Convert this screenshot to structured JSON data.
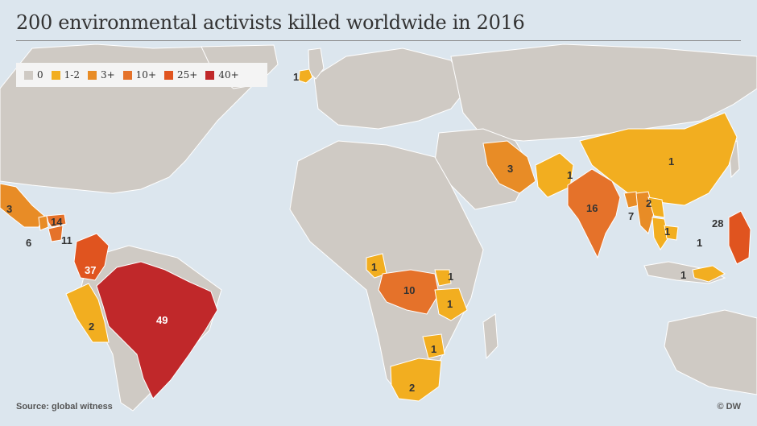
{
  "title": "200 environmental activists killed worldwide in 2016",
  "legend": [
    {
      "label": "0",
      "color": "#cfcac4"
    },
    {
      "label": "1-2",
      "color": "#f2ae20"
    },
    {
      "label": "3+",
      "color": "#e88c26"
    },
    {
      "label": "10+",
      "color": "#e5722a"
    },
    {
      "label": "25+",
      "color": "#e0541f"
    },
    {
      "label": "40+",
      "color": "#c0282a"
    }
  ],
  "countries": [
    {
      "name": "Ireland",
      "label": "1",
      "color": "#f2ae20"
    },
    {
      "name": "Mexico",
      "label": "3",
      "color": "#e88c26"
    },
    {
      "name": "Honduras",
      "label": "14",
      "color": "#e5722a"
    },
    {
      "name": "Nicaragua",
      "label": "11",
      "color": "#e5722a"
    },
    {
      "name": "Guatemala",
      "label": "6",
      "color": "#e88c26"
    },
    {
      "name": "Colombia",
      "label": "37",
      "color": "#e0541f"
    },
    {
      "name": "Peru",
      "label": "2",
      "color": "#f2ae20"
    },
    {
      "name": "Brazil",
      "label": "49",
      "color": "#c0282a"
    },
    {
      "name": "Iran",
      "label": "3",
      "color": "#e88c26"
    },
    {
      "name": "Pakistan",
      "label": "1",
      "color": "#f2ae20"
    },
    {
      "name": "India",
      "label": "16",
      "color": "#e5722a"
    },
    {
      "name": "China",
      "label": "1",
      "color": "#f2ae20"
    },
    {
      "name": "Bangladesh",
      "label": "",
      "color": "#e88c26"
    },
    {
      "name": "Myanmar",
      "label": "7",
      "color": "#e88c26"
    },
    {
      "name": "Laos",
      "label": "2",
      "color": "#f2ae20"
    },
    {
      "name": "Thailand",
      "label": "1",
      "color": "#f2ae20"
    },
    {
      "name": "Cambodia",
      "label": "1",
      "color": "#f2ae20"
    },
    {
      "name": "Indonesia",
      "label": "1",
      "color": "#f2ae20"
    },
    {
      "name": "Philippines",
      "label": "28",
      "color": "#e0541f"
    },
    {
      "name": "Cameroon",
      "label": "1",
      "color": "#f2ae20"
    },
    {
      "name": "DR Congo",
      "label": "10",
      "color": "#e5722a"
    },
    {
      "name": "Uganda",
      "label": "1",
      "color": "#f2ae20"
    },
    {
      "name": "Tanzania",
      "label": "1",
      "color": "#f2ae20"
    },
    {
      "name": "Zimbabwe",
      "label": "1",
      "color": "#f2ae20"
    },
    {
      "name": "South Africa",
      "label": "2",
      "color": "#f2ae20"
    }
  ],
  "land_color": "#cfcac4",
  "source": "Source: global witness",
  "credit": "© DW"
}
